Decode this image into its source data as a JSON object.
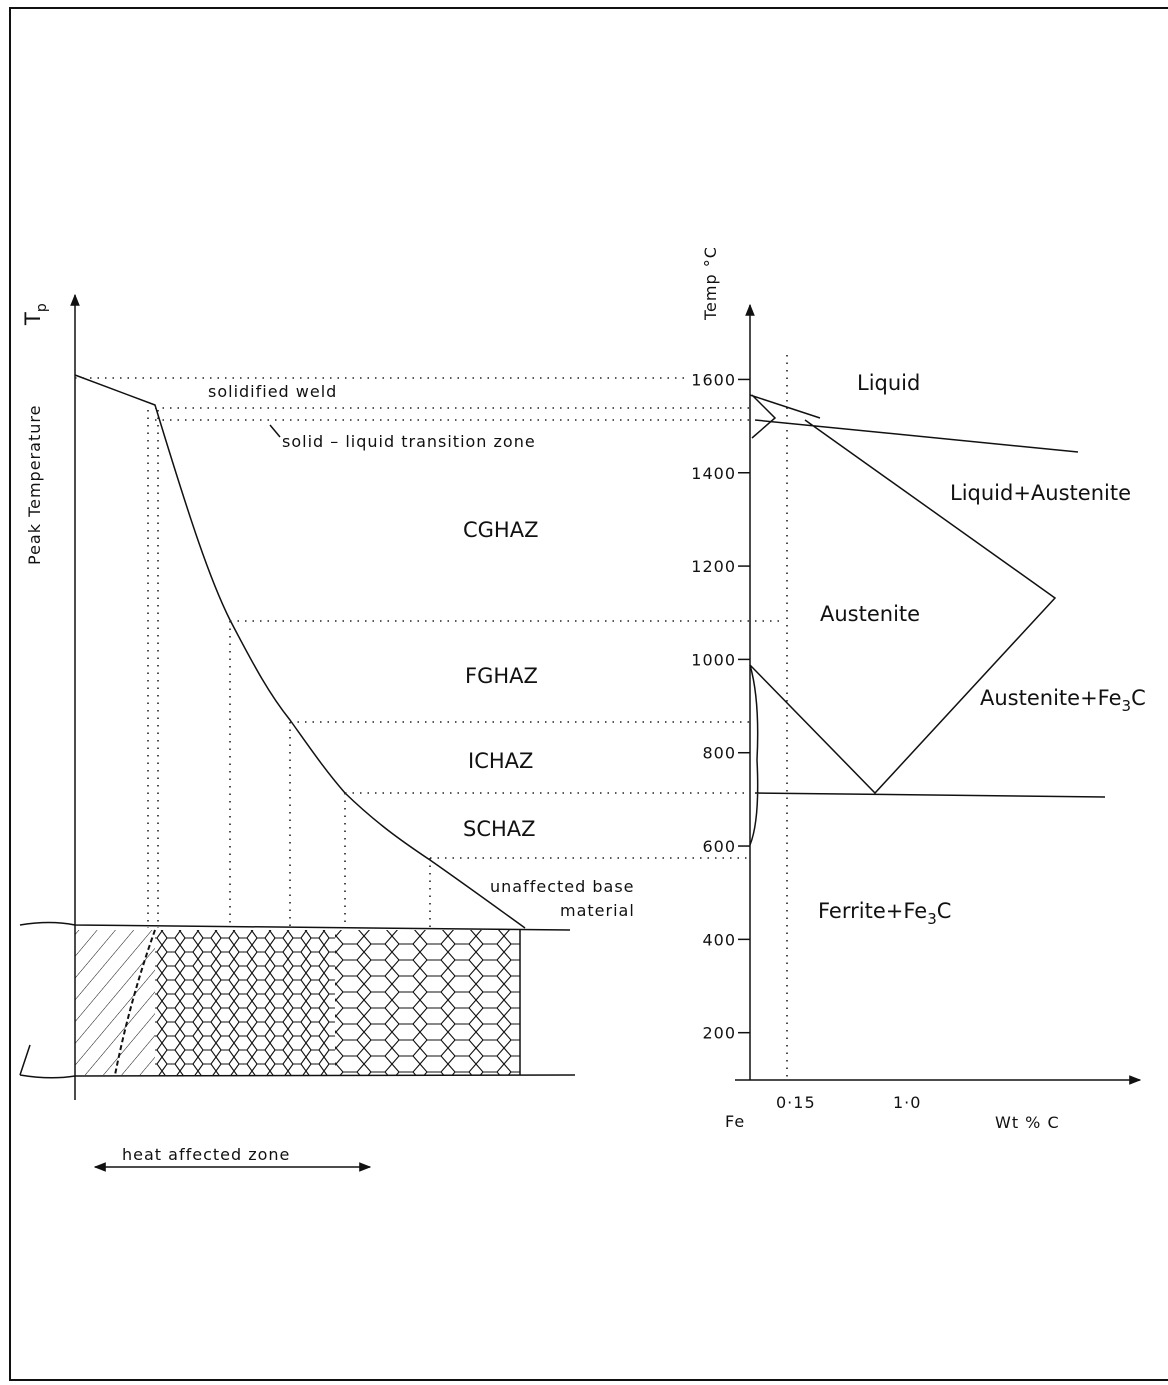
{
  "left": {
    "axis_label": "Peak Temperature",
    "axis_symbol": "T",
    "axis_symbol_sub": "p",
    "zones": {
      "solidified": "solidified weld",
      "transition": "solid – liquid transition zone",
      "cghaz": "CGHAZ",
      "fghaz": "FGHAZ",
      "ichaz": "ICHAZ",
      "schaz": "SCHAZ",
      "base_1": "unaffected base",
      "base_2": "material"
    },
    "haz": "heat affected zone"
  },
  "right": {
    "axis_label": "Temp °C",
    "temperature_ticks": [
      200,
      400,
      600,
      800,
      1000,
      1200,
      1400,
      1600
    ],
    "x_origin": "Fe",
    "x_labels": [
      "0·15",
      "1·0"
    ],
    "x_axis_label": "Wt % C",
    "phases": {
      "liquid": "Liquid",
      "liquid_austenite": "Liquid+Austenite",
      "austenite": "Austenite",
      "austenite_fe3c": {
        "text": "Austenite+Fe",
        "sub": "3",
        "end": "C"
      },
      "ferrite_fe3c": {
        "text": "Ferrite+Fe",
        "sub": "3",
        "end": "C"
      }
    }
  }
}
